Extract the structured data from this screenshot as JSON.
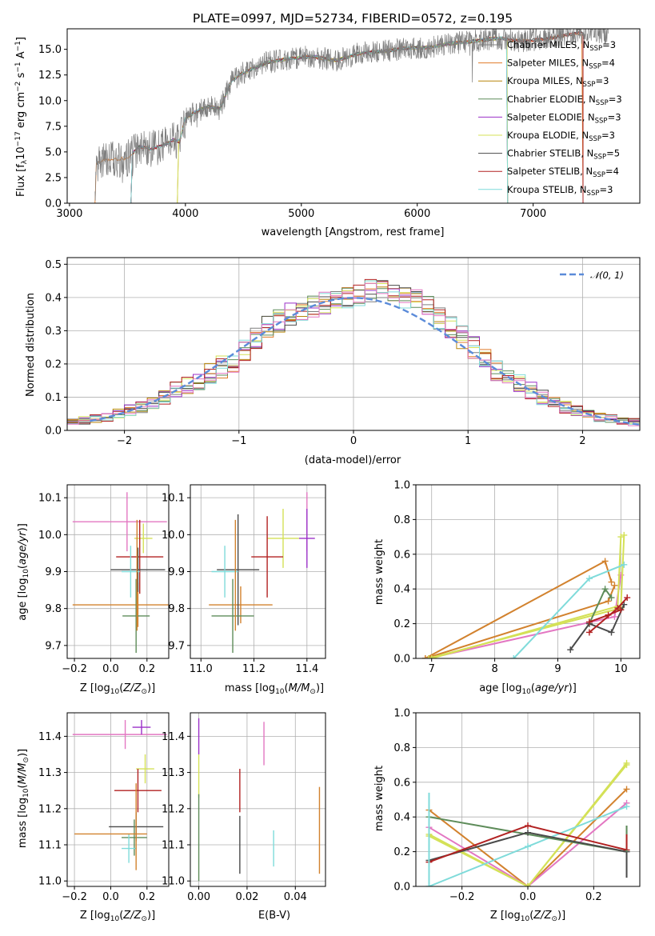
{
  "colors": {
    "Chabrier MILES": "#7f7f7f",
    "Salpeter MILES": "#e07b2a",
    "Kroupa MILES": "#b8860b",
    "Chabrier ELODIE": "#5e8c5a",
    "Salpeter ELODIE": "#9b30c8",
    "Kroupa ELODIE": "#d4e157",
    "Chabrier STELIB": "#4a4a4a",
    "Salpeter STELIB": "#b22222",
    "Kroupa STELIB": "#7fdbda",
    "pink": "#e377c2",
    "orange": "#d2822e",
    "gaussian": "#5b8bd9"
  },
  "chart_data": [
    {
      "id": "spectrum",
      "type": "line",
      "title": "PLATE=0997, MJD=52734, FIBERID=0572, z=0.195",
      "xlabel": "wavelength [Angstrom, rest frame]",
      "ylabel": "Flux [fλ10⁻¹⁷ erg cm⁻² s⁻¹ A⁻¹]",
      "xlim": [
        2980,
        7920
      ],
      "ylim": [
        0,
        17
      ],
      "xticks": [
        "3000",
        "4000",
        "5000",
        "6000",
        "7000"
      ],
      "yticks": [
        "0.0",
        "2.5",
        "5.0",
        "7.5",
        "10.0",
        "12.5",
        "15.0"
      ],
      "grid": false,
      "legend_position": "right",
      "legend": [
        {
          "label": "Chabrier MILES, N",
          "sub": "SSP",
          "suffix": "=3",
          "color": "#7f7f7f"
        },
        {
          "label": "Salpeter MILES, N",
          "sub": "SSP",
          "suffix": "=4",
          "color": "#e07b2a"
        },
        {
          "label": "Kroupa MILES, N",
          "sub": "SSP",
          "suffix": "=3",
          "color": "#b8860b"
        },
        {
          "label": "Chabrier ELODIE, N",
          "sub": "SSP",
          "suffix": "=3",
          "color": "#5e8c5a"
        },
        {
          "label": "Salpeter ELODIE, N",
          "sub": "SSP",
          "suffix": "=3",
          "color": "#9b30c8"
        },
        {
          "label": "Kroupa ELODIE, N",
          "sub": "SSP",
          "suffix": "=3",
          "color": "#d4e157"
        },
        {
          "label": "Chabrier STELIB, N",
          "sub": "SSP",
          "suffix": "=5",
          "color": "#4a4a4a"
        },
        {
          "label": "Salpeter STELIB, N",
          "sub": "SSP",
          "suffix": "=4",
          "color": "#b22222"
        },
        {
          "label": "Kroupa STELIB, N",
          "sub": "SSP",
          "suffix": "=3",
          "color": "#7fdbda"
        }
      ],
      "data_continuum": [
        [
          3220,
          0
        ],
        [
          3230,
          3.9
        ],
        [
          3300,
          4.2
        ],
        [
          3400,
          4.3
        ],
        [
          3500,
          4.4
        ],
        [
          3600,
          5.5
        ],
        [
          3700,
          5.3
        ],
        [
          3800,
          5.6
        ],
        [
          3900,
          6.2
        ],
        [
          3950,
          6.0
        ],
        [
          4000,
          8.3
        ],
        [
          4100,
          9.0
        ],
        [
          4200,
          9.4
        ],
        [
          4300,
          9.2
        ],
        [
          4400,
          12.0
        ],
        [
          4500,
          12.7
        ],
        [
          4700,
          13.7
        ],
        [
          4900,
          14.1
        ],
        [
          5100,
          14.3
        ],
        [
          5300,
          13.9
        ],
        [
          5500,
          14.6
        ],
        [
          5700,
          14.8
        ],
        [
          5900,
          15.1
        ],
        [
          6100,
          15.2
        ],
        [
          6300,
          15.6
        ],
        [
          6500,
          15.8
        ],
        [
          6700,
          16.1
        ],
        [
          6900,
          15.8
        ],
        [
          7100,
          16.0
        ],
        [
          7300,
          16.4
        ],
        [
          7500,
          16.7
        ],
        [
          7600,
          16.6
        ]
      ],
      "model_ranges": [
        [
          3530,
          7430
        ],
        [
          3220,
          7430
        ],
        [
          3930,
          6780
        ],
        [
          3530,
          6780
        ],
        [
          3530,
          6780
        ],
        [
          3930,
          6780
        ],
        [
          3530,
          7430
        ],
        [
          3530,
          7430
        ],
        [
          3530,
          6780
        ]
      ]
    },
    {
      "id": "residuals",
      "type": "histogram",
      "xlabel": "(data-model)/error",
      "ylabel": "Normed distribution",
      "xlim": [
        -2.5,
        2.5
      ],
      "ylim": [
        0,
        0.52
      ],
      "xticks": [
        "−2",
        "−1",
        "0",
        "1",
        "2"
      ],
      "yticks": [
        "0.0",
        "0.1",
        "0.2",
        "0.3",
        "0.4",
        "0.5"
      ],
      "grid": true,
      "legend_position": "top-right",
      "legend_label": "𝒩(0, 1)",
      "bins": [
        -2.5,
        -2.4,
        -2.3,
        -2.2,
        -2.1,
        -2.0,
        -1.9,
        -1.8,
        -1.7,
        -1.6,
        -1.5,
        -1.4,
        -1.3,
        -1.2,
        -1.1,
        -1.0,
        -0.9,
        -0.8,
        -0.7,
        -0.6,
        -0.5,
        -0.4,
        -0.3,
        -0.2,
        -0.1,
        0.0,
        0.1,
        0.2,
        0.3,
        0.4,
        0.5,
        0.6,
        0.7,
        0.8,
        0.9,
        1.0,
        1.1,
        1.2,
        1.3,
        1.4,
        1.5,
        1.6,
        1.7,
        1.8,
        1.9,
        2.0,
        2.1,
        2.2,
        2.3,
        2.4,
        2.5
      ],
      "base_values": [
        0.025,
        0.03,
        0.035,
        0.04,
        0.05,
        0.06,
        0.07,
        0.085,
        0.1,
        0.12,
        0.135,
        0.15,
        0.17,
        0.19,
        0.21,
        0.24,
        0.28,
        0.31,
        0.33,
        0.35,
        0.36,
        0.37,
        0.385,
        0.39,
        0.4,
        0.41,
        0.42,
        0.42,
        0.41,
        0.4,
        0.39,
        0.37,
        0.34,
        0.31,
        0.28,
        0.25,
        0.21,
        0.18,
        0.16,
        0.14,
        0.12,
        0.1,
        0.085,
        0.07,
        0.06,
        0.05,
        0.04,
        0.035,
        0.03,
        0.025
      ]
    },
    {
      "id": "age-vs-z",
      "type": "errorbar",
      "xlabel": "Z [log₁₀(Z/Z⊙)]",
      "ylabel": "age [log₁₀(age/yr)]",
      "xlim": [
        -0.24,
        0.32
      ],
      "ylim": [
        9.665,
        10.135
      ],
      "xticks": [
        "−0.2",
        "0.0",
        "0.2"
      ],
      "yticks": [
        "9.7",
        "9.8",
        "9.9",
        "10.0",
        "10.1"
      ],
      "grid": true,
      "points": [
        {
          "x": 0.15,
          "y": 9.81,
          "xerr": 0.36,
          "yerr": 0.06,
          "color": "#d2822e"
        },
        {
          "x": 0.05,
          "y": 10.035,
          "xerr": 0.26,
          "yerr": 0.0,
          "color": "#e377c2"
        },
        {
          "x": 0.09,
          "y": 10.035,
          "yerr": 0.08,
          "xerr": 0.0,
          "color": "#e377c2"
        },
        {
          "x": 0.18,
          "y": 9.99,
          "xerr": 0.05,
          "yerr": 0.04,
          "color": "#d4e157"
        },
        {
          "x": 0.16,
          "y": 9.94,
          "xerr": 0.13,
          "yerr": 0.1,
          "color": "#b22222"
        },
        {
          "x": 0.15,
          "y": 9.905,
          "xerr": 0.15,
          "yerr": 0.06,
          "color": "#4a4a4a"
        },
        {
          "x": 0.11,
          "y": 9.9,
          "xerr": 0.05,
          "yerr": 0.07,
          "color": "#7fdbda"
        },
        {
          "x": 0.14,
          "y": 9.78,
          "xerr": 0.075,
          "yerr": 0.1,
          "color": "#5e8c5a"
        },
        {
          "x": 0.145,
          "y": 9.89,
          "xerr": 0.0,
          "yerr": 0.15,
          "color": "#d2822e"
        }
      ]
    },
    {
      "id": "age-vs-mass",
      "type": "errorbar",
      "xlabel": "mass [log₁₀(M/M⊙)]",
      "xlim": [
        10.96,
        11.47
      ],
      "ylim": [
        9.665,
        10.135
      ],
      "xticks": [
        "11.0",
        "11.2",
        "11.4"
      ],
      "yticks": [
        "9.7",
        "9.8",
        "9.9",
        "10.0",
        "10.1"
      ],
      "grid": true,
      "points": [
        {
          "x": 11.15,
          "y": 9.81,
          "xerr": 0.12,
          "yerr": 0.05,
          "color": "#d2822e"
        },
        {
          "x": 11.4,
          "y": 10.035,
          "xerr": 0.0,
          "yerr": 0.08,
          "color": "#e377c2"
        },
        {
          "x": 11.4,
          "y": 9.99,
          "xerr": 0.03,
          "yerr": 0.08,
          "color": "#9b30c8"
        },
        {
          "x": 11.31,
          "y": 9.99,
          "xerr": 0.06,
          "yerr": 0.08,
          "color": "#d4e157"
        },
        {
          "x": 11.25,
          "y": 9.94,
          "xerr": 0.06,
          "yerr": 0.11,
          "color": "#b22222"
        },
        {
          "x": 11.14,
          "y": 9.905,
          "xerr": 0.08,
          "yerr": 0.15,
          "color": "#4a4a4a"
        },
        {
          "x": 11.09,
          "y": 9.9,
          "xerr": 0.05,
          "yerr": 0.07,
          "color": "#7fdbda"
        },
        {
          "x": 11.12,
          "y": 9.78,
          "xerr": 0.08,
          "yerr": 0.1,
          "color": "#5e8c5a"
        },
        {
          "x": 11.13,
          "y": 9.89,
          "xerr": 0.0,
          "yerr": 0.15,
          "color": "#d2822e"
        }
      ]
    },
    {
      "id": "weight-vs-age",
      "type": "line",
      "xlabel": "age [log₁₀(age/yr)]",
      "ylabel": "mass weight",
      "xlim": [
        6.75,
        10.3
      ],
      "ylim": [
        0,
        1
      ],
      "xticks": [
        "7",
        "8",
        "9",
        "10"
      ],
      "yticks": [
        "0.0",
        "0.2",
        "0.4",
        "0.6",
        "0.8",
        "1.0"
      ],
      "grid": true,
      "series": [
        {
          "color": "#d2822e",
          "x": [
            6.9,
            9.75,
            9.85
          ],
          "y": [
            0.0,
            0.56,
            0.44
          ]
        },
        {
          "color": "#d2822e",
          "x": [
            6.9,
            9.8,
            9.9
          ],
          "y": [
            0.0,
            0.33,
            0.42
          ]
        },
        {
          "color": "#e377c2",
          "x": [
            6.95,
            9.9,
            10.0
          ],
          "y": [
            0.0,
            0.24,
            0.48
          ]
        },
        {
          "color": "#d4e157",
          "x": [
            6.95,
            10.0,
            10.05
          ],
          "y": [
            0.0,
            0.29,
            0.71
          ]
        },
        {
          "color": "#d4e157",
          "x": [
            7.0,
            9.95,
            10.0
          ],
          "y": [
            0.0,
            0.3,
            0.7
          ]
        },
        {
          "color": "#7fdbda",
          "x": [
            8.3,
            9.5,
            10.05
          ],
          "y": [
            0.0,
            0.46,
            0.54
          ]
        },
        {
          "color": "#5e8c5a",
          "x": [
            9.5,
            9.75,
            9.85
          ],
          "y": [
            0.2,
            0.4,
            0.35
          ]
        },
        {
          "color": "#4a4a4a",
          "x": [
            9.2,
            9.5,
            9.85,
            10.05
          ],
          "y": [
            0.05,
            0.2,
            0.15,
            0.31
          ]
        },
        {
          "color": "#b22222",
          "x": [
            9.5,
            9.95,
            10.1
          ],
          "y": [
            0.15,
            0.29,
            0.35
          ]
        },
        {
          "color": "#b22222",
          "x": [
            9.5,
            9.8,
            10.0
          ],
          "y": [
            0.21,
            0.25,
            0.28
          ]
        }
      ]
    },
    {
      "id": "mass-vs-z",
      "type": "errorbar",
      "xlabel": "Z [log₁₀(Z/Z⊙)]",
      "ylabel": "mass [log₁₀(M/M⊙)]",
      "xlim": [
        -0.24,
        0.32
      ],
      "ylim": [
        10.985,
        11.465
      ],
      "xticks": [
        "−0.2",
        "0.0",
        "0.2"
      ],
      "yticks": [
        "11.0",
        "11.1",
        "11.2",
        "11.3",
        "11.4"
      ],
      "grid": true,
      "points": [
        {
          "x": 0.05,
          "y": 11.405,
          "xerr": 0.26,
          "yerr": 0.0,
          "color": "#e377c2"
        },
        {
          "x": 0.08,
          "y": 11.405,
          "xerr": 0.0,
          "yerr": 0.04,
          "color": "#e377c2"
        },
        {
          "x": 0.17,
          "y": 11.425,
          "xerr": 0.05,
          "yerr": 0.02,
          "color": "#9b30c8"
        },
        {
          "x": 0.19,
          "y": 11.31,
          "xerr": 0.05,
          "yerr": 0.04,
          "color": "#d4e157"
        },
        {
          "x": 0.15,
          "y": 11.25,
          "xerr": 0.13,
          "yerr": 0.06,
          "color": "#b22222"
        },
        {
          "x": 0.14,
          "y": 11.15,
          "xerr": 0.15,
          "yerr": 0.04,
          "color": "#4a4a4a"
        },
        {
          "x": 0.13,
          "y": 11.12,
          "xerr": 0.07,
          "yerr": 0.05,
          "color": "#5e8c5a"
        },
        {
          "x": 0.1,
          "y": 11.09,
          "xerr": 0.04,
          "yerr": 0.04,
          "color": "#7fdbda"
        },
        {
          "x": 0.0,
          "y": 11.13,
          "xerr": 0.2,
          "yerr": 0.0,
          "color": "#d2822e"
        },
        {
          "x": 0.14,
          "y": 11.15,
          "xerr": 0.0,
          "yerr": 0.12,
          "color": "#d2822e"
        }
      ]
    },
    {
      "id": "mass-vs-ebv",
      "type": "errorbar",
      "xlabel": "E(B-V)",
      "xlim": [
        -0.0035,
        0.0525
      ],
      "ylim": [
        10.985,
        11.465
      ],
      "xticks": [
        "0.00",
        "0.02",
        "0.04"
      ],
      "yticks": [
        "11.0",
        "11.1",
        "11.2",
        "11.3",
        "11.4"
      ],
      "grid": true,
      "points": [
        {
          "x": 0.0,
          "y": 11.4,
          "xerr": 0.0,
          "yerr": 0.05,
          "color": "#9b30c8"
        },
        {
          "x": 0.0,
          "y": 11.29,
          "xerr": 0.0,
          "yerr": 0.06,
          "color": "#d4e157"
        },
        {
          "x": 0.0,
          "y": 11.12,
          "xerr": 0.0,
          "yerr": 0.12,
          "color": "#5e8c5a"
        },
        {
          "x": 0.017,
          "y": 11.25,
          "xerr": 0.0,
          "yerr": 0.06,
          "color": "#b22222"
        },
        {
          "x": 0.017,
          "y": 11.1,
          "xerr": 0.0,
          "yerr": 0.08,
          "color": "#4a4a4a"
        },
        {
          "x": 0.027,
          "y": 11.38,
          "xerr": 0.0,
          "yerr": 0.06,
          "color": "#e377c2"
        },
        {
          "x": 0.031,
          "y": 11.09,
          "xerr": 0.0,
          "yerr": 0.05,
          "color": "#7fdbda"
        },
        {
          "x": 0.05,
          "y": 11.14,
          "xerr": 0.0,
          "yerr": 0.12,
          "color": "#d2822e"
        }
      ]
    },
    {
      "id": "weight-vs-z",
      "type": "line",
      "xlabel": "Z [log₁₀(Z/Z⊙)]",
      "ylabel": "mass weight",
      "xlim": [
        -0.34,
        0.34
      ],
      "ylim": [
        0,
        1
      ],
      "xticks": [
        "−0.2",
        "0.0",
        "0.2"
      ],
      "yticks": [
        "0.0",
        "0.2",
        "0.4",
        "0.6",
        "0.8",
        "1.0"
      ],
      "grid": true,
      "series": [
        {
          "color": "#d2822e",
          "x": [
            -0.3,
            0.0,
            0.3
          ],
          "y": [
            0.44,
            0.0,
            0.56
          ]
        },
        {
          "color": "#e377c2",
          "x": [
            -0.3,
            0.0,
            0.3
          ],
          "y": [
            0.34,
            0.0,
            0.48
          ]
        },
        {
          "color": "#d4e157",
          "x": [
            -0.3,
            0.0,
            0.3
          ],
          "y": [
            0.29,
            0.0,
            0.71
          ]
        },
        {
          "color": "#d4e157",
          "x": [
            -0.3,
            0.0,
            0.3
          ],
          "y": [
            0.3,
            0.0,
            0.7
          ]
        },
        {
          "color": "#7fdbda",
          "x": [
            -0.3,
            0.0,
            0.3
          ],
          "y": [
            0.0,
            0.23,
            0.46
          ]
        },
        {
          "color": "#5e8c5a",
          "x": [
            -0.3,
            0.3
          ],
          "y": [
            0.4,
            0.2
          ]
        },
        {
          "color": "#4a4a4a",
          "x": [
            -0.3,
            0.0,
            0.3
          ],
          "y": [
            0.15,
            0.31,
            0.2
          ]
        },
        {
          "color": "#b22222",
          "x": [
            -0.3,
            0.0,
            0.3
          ],
          "y": [
            0.14,
            0.35,
            0.21
          ]
        }
      ],
      "vsegments": [
        {
          "x": -0.3,
          "y0": 0.0,
          "y1": 0.54,
          "color": "#7fdbda"
        },
        {
          "x": 0.3,
          "y0": 0.05,
          "y1": 0.35,
          "color": "#4a4a4a"
        },
        {
          "x": 0.3,
          "y0": 0.2,
          "y1": 0.35,
          "color": "#5e8c5a"
        },
        {
          "x": 0.3,
          "y0": 0.21,
          "y1": 0.3,
          "color": "#b22222"
        }
      ]
    }
  ]
}
